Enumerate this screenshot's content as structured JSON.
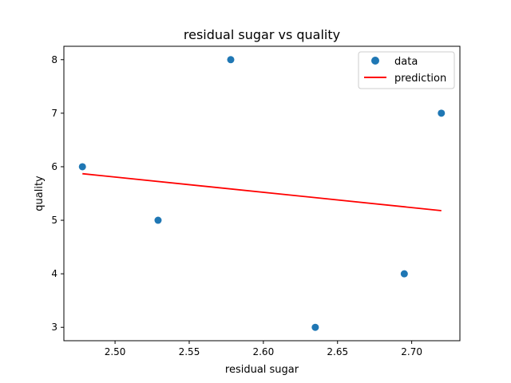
{
  "chart_data": {
    "type": "scatter",
    "title": "residual sugar vs quality",
    "xlabel": "residual sugar",
    "ylabel": "quality",
    "xlim": [
      2.4655,
      2.7325
    ],
    "ylim": [
      2.75,
      8.25
    ],
    "xticks": [
      2.5,
      2.55,
      2.6,
      2.65,
      2.7
    ],
    "xtick_labels": [
      "2.50",
      "2.55",
      "2.60",
      "2.65",
      "2.70"
    ],
    "yticks": [
      3,
      4,
      5,
      6,
      7,
      8
    ],
    "ytick_labels": [
      "3",
      "4",
      "5",
      "6",
      "7",
      "8"
    ],
    "grid": false,
    "legend_position": "top-right",
    "series": [
      {
        "name": "data",
        "type": "scatter",
        "color": "#1f77b4",
        "points": [
          {
            "x": 2.478,
            "y": 6
          },
          {
            "x": 2.529,
            "y": 5
          },
          {
            "x": 2.578,
            "y": 8
          },
          {
            "x": 2.635,
            "y": 3
          },
          {
            "x": 2.695,
            "y": 4
          },
          {
            "x": 2.72,
            "y": 7
          }
        ]
      },
      {
        "name": "prediction",
        "type": "line",
        "color": "#ff0000",
        "points": [
          {
            "x": 2.478,
            "y": 5.87
          },
          {
            "x": 2.72,
            "y": 5.18
          }
        ]
      }
    ]
  }
}
